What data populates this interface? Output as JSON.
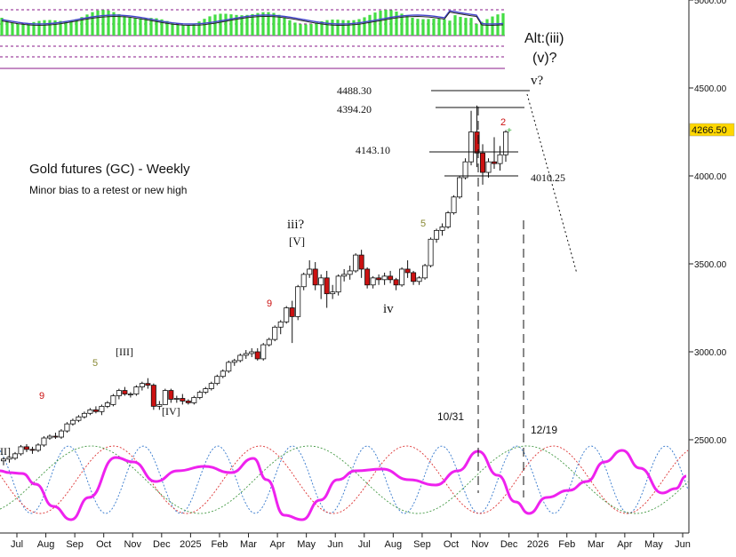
{
  "chart_data": {
    "type": "candlestick",
    "title": "Gold futures (GC) - Weekly",
    "subtitle": "Minor bias to a retest or new high",
    "ylim": [
      2050,
      5000
    ],
    "y_ticks": [
      {
        "value": 5000,
        "label": "5000.00"
      },
      {
        "value": 4500,
        "label": "4500.00"
      },
      {
        "value": 4000,
        "label": "4000.00"
      },
      {
        "value": 3500,
        "label": "3500.00"
      },
      {
        "value": 3000,
        "label": "3000.00"
      },
      {
        "value": 2500,
        "label": "2500.00"
      }
    ],
    "x_ticks": [
      "Jul",
      "Aug",
      "Sep",
      "Oct",
      "Nov",
      "Dec",
      "2025",
      "Feb",
      "Mar",
      "Apr",
      "May",
      "Jun",
      "Jul",
      "Aug",
      "Sep",
      "Oct",
      "Nov",
      "Dec",
      "2026",
      "Feb",
      "Mar",
      "Apr",
      "May",
      "Jun"
    ],
    "last_price": {
      "value": 4266.5,
      "label": "4266.50"
    },
    "candles": [
      {
        "o": 2380,
        "h": 2400,
        "l": 2355,
        "c": 2390
      },
      {
        "o": 2390,
        "h": 2405,
        "l": 2370,
        "c": 2400
      },
      {
        "o": 2395,
        "h": 2430,
        "l": 2385,
        "c": 2420
      },
      {
        "o": 2420,
        "h": 2470,
        "l": 2410,
        "c": 2460
      },
      {
        "o": 2460,
        "h": 2475,
        "l": 2430,
        "c": 2445
      },
      {
        "o": 2445,
        "h": 2460,
        "l": 2420,
        "c": 2440
      },
      {
        "o": 2440,
        "h": 2480,
        "l": 2430,
        "c": 2470
      },
      {
        "o": 2470,
        "h": 2520,
        "l": 2460,
        "c": 2510
      },
      {
        "o": 2510,
        "h": 2530,
        "l": 2500,
        "c": 2520
      },
      {
        "o": 2520,
        "h": 2540,
        "l": 2505,
        "c": 2515
      },
      {
        "o": 2515,
        "h": 2560,
        "l": 2505,
        "c": 2550
      },
      {
        "o": 2550,
        "h": 2600,
        "l": 2540,
        "c": 2590
      },
      {
        "o": 2590,
        "h": 2620,
        "l": 2580,
        "c": 2610
      },
      {
        "o": 2610,
        "h": 2640,
        "l": 2600,
        "c": 2630
      },
      {
        "o": 2630,
        "h": 2660,
        "l": 2620,
        "c": 2650
      },
      {
        "o": 2650,
        "h": 2680,
        "l": 2640,
        "c": 2670
      },
      {
        "o": 2670,
        "h": 2690,
        "l": 2650,
        "c": 2660
      },
      {
        "o": 2660,
        "h": 2700,
        "l": 2640,
        "c": 2690
      },
      {
        "o": 2690,
        "h": 2720,
        "l": 2680,
        "c": 2710
      },
      {
        "o": 2700,
        "h": 2760,
        "l": 2690,
        "c": 2750
      },
      {
        "o": 2750,
        "h": 2790,
        "l": 2730,
        "c": 2780
      },
      {
        "o": 2780,
        "h": 2800,
        "l": 2750,
        "c": 2760
      },
      {
        "o": 2760,
        "h": 2770,
        "l": 2740,
        "c": 2760
      },
      {
        "o": 2760,
        "h": 2810,
        "l": 2750,
        "c": 2800
      },
      {
        "o": 2800,
        "h": 2830,
        "l": 2780,
        "c": 2820
      },
      {
        "o": 2820,
        "h": 2850,
        "l": 2790,
        "c": 2810
      },
      {
        "o": 2810,
        "h": 2820,
        "l": 2670,
        "c": 2690
      },
      {
        "o": 2690,
        "h": 2720,
        "l": 2670,
        "c": 2700
      },
      {
        "o": 2700,
        "h": 2790,
        "l": 2700,
        "c": 2780
      },
      {
        "o": 2780,
        "h": 2790,
        "l": 2710,
        "c": 2730
      },
      {
        "o": 2730,
        "h": 2750,
        "l": 2710,
        "c": 2735
      },
      {
        "o": 2735,
        "h": 2760,
        "l": 2700,
        "c": 2720
      },
      {
        "o": 2720,
        "h": 2730,
        "l": 2700,
        "c": 2710
      },
      {
        "o": 2710,
        "h": 2750,
        "l": 2700,
        "c": 2740
      },
      {
        "o": 2740,
        "h": 2780,
        "l": 2730,
        "c": 2770
      },
      {
        "o": 2770,
        "h": 2800,
        "l": 2760,
        "c": 2790
      },
      {
        "o": 2790,
        "h": 2830,
        "l": 2780,
        "c": 2820
      },
      {
        "o": 2820,
        "h": 2870,
        "l": 2810,
        "c": 2860
      },
      {
        "o": 2860,
        "h": 2900,
        "l": 2850,
        "c": 2890
      },
      {
        "o": 2890,
        "h": 2950,
        "l": 2880,
        "c": 2940
      },
      {
        "o": 2940,
        "h": 2960,
        "l": 2920,
        "c": 2950
      },
      {
        "o": 2950,
        "h": 2990,
        "l": 2940,
        "c": 2980
      },
      {
        "o": 2980,
        "h": 3010,
        "l": 2960,
        "c": 2990
      },
      {
        "o": 2990,
        "h": 3020,
        "l": 2970,
        "c": 3000
      },
      {
        "o": 3000,
        "h": 3020,
        "l": 2950,
        "c": 2960
      },
      {
        "o": 2960,
        "h": 3050,
        "l": 2950,
        "c": 3040
      },
      {
        "o": 3040,
        "h": 3080,
        "l": 3030,
        "c": 3070
      },
      {
        "o": 3070,
        "h": 3150,
        "l": 3060,
        "c": 3140
      },
      {
        "o": 3140,
        "h": 3180,
        "l": 3100,
        "c": 3170
      },
      {
        "o": 3170,
        "h": 3260,
        "l": 3160,
        "c": 3250
      },
      {
        "o": 3250,
        "h": 3290,
        "l": 3050,
        "c": 3200
      },
      {
        "o": 3200,
        "h": 3380,
        "l": 3180,
        "c": 3370
      },
      {
        "o": 3370,
        "h": 3450,
        "l": 3350,
        "c": 3440
      },
      {
        "o": 3440,
        "h": 3520,
        "l": 3420,
        "c": 3470
      },
      {
        "o": 3470,
        "h": 3510,
        "l": 3350,
        "c": 3380
      },
      {
        "o": 3380,
        "h": 3440,
        "l": 3300,
        "c": 3420
      },
      {
        "o": 3420,
        "h": 3460,
        "l": 3250,
        "c": 3330
      },
      {
        "o": 3330,
        "h": 3380,
        "l": 3300,
        "c": 3340
      },
      {
        "o": 3340,
        "h": 3440,
        "l": 3320,
        "c": 3430
      },
      {
        "o": 3430,
        "h": 3470,
        "l": 3400,
        "c": 3440
      },
      {
        "o": 3440,
        "h": 3490,
        "l": 3410,
        "c": 3460
      },
      {
        "o": 3460,
        "h": 3560,
        "l": 3450,
        "c": 3550
      },
      {
        "o": 3550,
        "h": 3580,
        "l": 3420,
        "c": 3470
      },
      {
        "o": 3470,
        "h": 3480,
        "l": 3360,
        "c": 3380
      },
      {
        "o": 3380,
        "h": 3430,
        "l": 3360,
        "c": 3420
      },
      {
        "o": 3420,
        "h": 3440,
        "l": 3380,
        "c": 3410
      },
      {
        "o": 3410,
        "h": 3450,
        "l": 3380,
        "c": 3430
      },
      {
        "o": 3430,
        "h": 3460,
        "l": 3390,
        "c": 3410
      },
      {
        "o": 3410,
        "h": 3420,
        "l": 3350,
        "c": 3380
      },
      {
        "o": 3380,
        "h": 3480,
        "l": 3370,
        "c": 3470
      },
      {
        "o": 3470,
        "h": 3520,
        "l": 3420,
        "c": 3450
      },
      {
        "o": 3450,
        "h": 3460,
        "l": 3380,
        "c": 3400
      },
      {
        "o": 3400,
        "h": 3430,
        "l": 3380,
        "c": 3420
      },
      {
        "o": 3420,
        "h": 3500,
        "l": 3410,
        "c": 3490
      },
      {
        "o": 3490,
        "h": 3650,
        "l": 3480,
        "c": 3640
      },
      {
        "o": 3640,
        "h": 3700,
        "l": 3620,
        "c": 3690
      },
      {
        "o": 3690,
        "h": 3730,
        "l": 3660,
        "c": 3710
      },
      {
        "o": 3710,
        "h": 3800,
        "l": 3700,
        "c": 3790
      },
      {
        "o": 3790,
        "h": 3890,
        "l": 3780,
        "c": 3880
      },
      {
        "o": 3880,
        "h": 4000,
        "l": 3870,
        "c": 3990
      },
      {
        "o": 3990,
        "h": 4100,
        "l": 3980,
        "c": 4080
      },
      {
        "o": 4080,
        "h": 4370,
        "l": 4060,
        "c": 4250
      },
      {
        "o": 4250,
        "h": 4400,
        "l": 4050,
        "c": 4130
      },
      {
        "o": 4130,
        "h": 4180,
        "l": 3950,
        "c": 4020
      },
      {
        "o": 4020,
        "h": 4100,
        "l": 3990,
        "c": 4080
      },
      {
        "o": 4080,
        "h": 4220,
        "l": 4040,
        "c": 4070
      },
      {
        "o": 4070,
        "h": 4170,
        "l": 4030,
        "c": 4120
      },
      {
        "o": 4120,
        "h": 4260,
        "l": 4080,
        "c": 4250
      }
    ],
    "horizontal_levels": [
      {
        "value": 4488.3,
        "label": "4488.30"
      },
      {
        "value": 4394.2,
        "label": "4394.20"
      },
      {
        "value": 4143.1,
        "label": "4143.10"
      },
      {
        "value": 4010.25,
        "label": "4010.25"
      }
    ],
    "vertical_markers": [
      {
        "date": "10/31",
        "label": "10/31"
      },
      {
        "date": "12/19",
        "label": "12/19"
      }
    ],
    "wave_labels": [
      "[III]",
      "[IV]",
      "iii?",
      "[V]",
      "iv",
      "v?",
      "Alt:(iii)",
      "(v)?"
    ],
    "count_labels": [
      {
        "text": "9",
        "color": "red"
      },
      {
        "text": "5",
        "color": "olive"
      },
      {
        "text": "9",
        "color": "red"
      },
      {
        "text": "5",
        "color": "olive"
      },
      {
        "text": "2",
        "color": "red"
      }
    ],
    "partial_label": "II]",
    "projection": {
      "from": 4480,
      "to": 3450
    },
    "cycles": {
      "composite_color": "#ee22ee",
      "component_colors": [
        "#3377cc",
        "#dd3333",
        "#449944"
      ]
    },
    "top_panel": {
      "bar_color": "#44dd44",
      "line_color": "#4444cc"
    }
  },
  "colors": {
    "bull_fill": "#ffffff",
    "bear_fill": "#cc1111",
    "candle_outline": "#111111",
    "last_price_box": "#ffd700",
    "purple_lines": "#8a1a8a"
  }
}
